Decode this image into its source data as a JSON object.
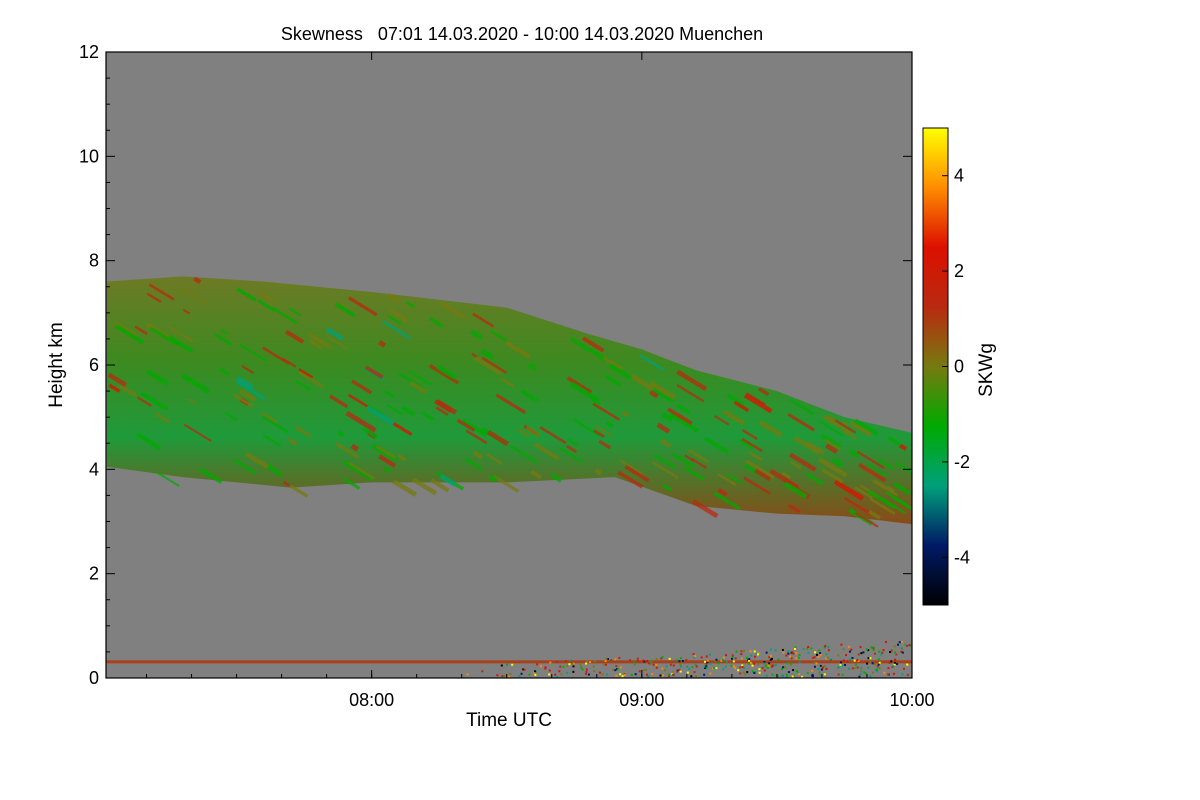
{
  "chart_data": {
    "type": "heatmap",
    "title": "Skewness   07:01 14.03.2020 - 10:00 14.03.2020 Muenchen",
    "xlabel": "Time UTC",
    "ylabel": "Height km",
    "xlim_hours": [
      7.0167,
      10.0
    ],
    "ylim": [
      0,
      12
    ],
    "x_ticks": [
      {
        "value": 8.0,
        "label": "08:00"
      },
      {
        "value": 9.0,
        "label": "09:00"
      },
      {
        "value": 10.0,
        "label": "10:00"
      }
    ],
    "y_ticks": [
      {
        "value": 0,
        "label": "0"
      },
      {
        "value": 2,
        "label": "2"
      },
      {
        "value": 4,
        "label": "4"
      },
      {
        "value": 6,
        "label": "6"
      },
      {
        "value": 8,
        "label": "8"
      },
      {
        "value": 10,
        "label": "10"
      },
      {
        "value": 12,
        "label": "12"
      }
    ],
    "colorbar": {
      "label": "SKWg",
      "range": [
        -5,
        5
      ],
      "ticks": [
        {
          "value": 4,
          "label": "4"
        },
        {
          "value": 2,
          "label": "2"
        },
        {
          "value": 0,
          "label": "0"
        },
        {
          "value": -2,
          "label": "-2"
        },
        {
          "value": -4,
          "label": "-4"
        }
      ],
      "colors": [
        "#000000",
        "#001a66",
        "#00a07a",
        "#00aa00",
        "#777a10",
        "#b82a10",
        "#dc1000",
        "#ff8c00",
        "#ffff00"
      ]
    },
    "background_color": "#808080",
    "cloud_layer": {
      "top_km": [
        [
          7.02,
          7.6
        ],
        [
          7.3,
          7.7
        ],
        [
          7.6,
          7.6
        ],
        [
          8.0,
          7.4
        ],
        [
          8.5,
          7.1
        ],
        [
          8.8,
          6.6
        ],
        [
          9.0,
          6.3
        ],
        [
          9.2,
          5.9
        ],
        [
          9.5,
          5.5
        ],
        [
          9.75,
          5.0
        ],
        [
          10.0,
          4.7
        ]
      ],
      "base_km": [
        [
          7.02,
          4.05
        ],
        [
          7.3,
          3.85
        ],
        [
          7.7,
          3.65
        ],
        [
          8.0,
          3.75
        ],
        [
          8.5,
          3.75
        ],
        [
          8.9,
          3.85
        ],
        [
          9.2,
          3.3
        ],
        [
          9.5,
          3.15
        ],
        [
          9.75,
          3.1
        ],
        [
          10.0,
          2.95
        ]
      ],
      "value_range": [
        -2,
        2
      ]
    },
    "surface_layer": {
      "height_km": 0.3,
      "value_range": [
        -5,
        5
      ]
    }
  }
}
